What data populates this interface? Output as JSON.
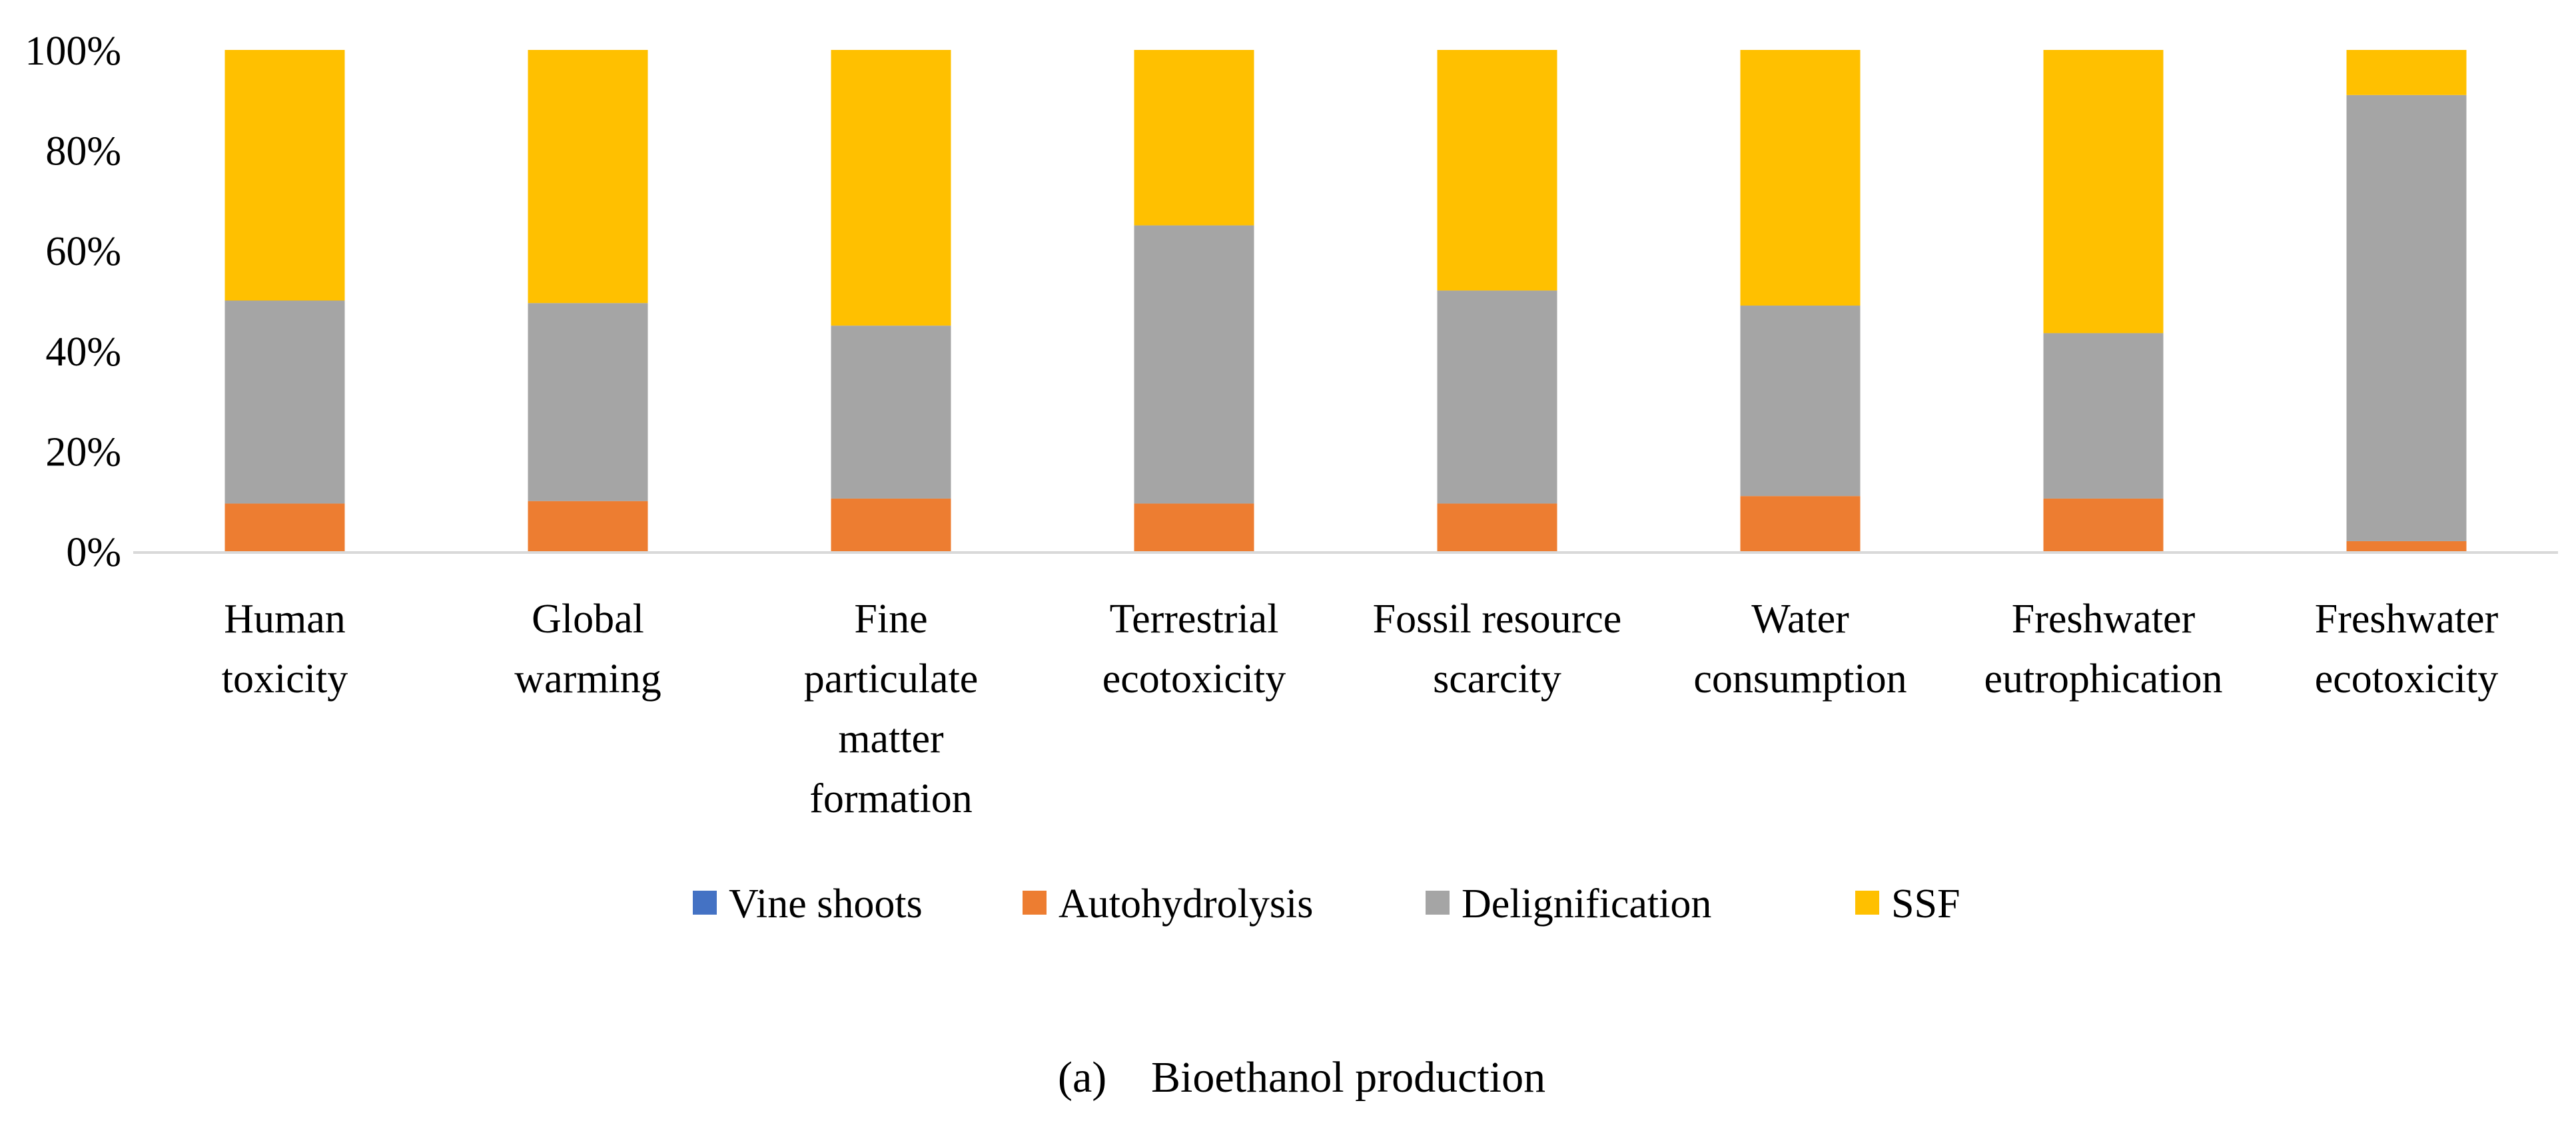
{
  "chart_data": {
    "type": "bar",
    "stacked": true,
    "percent_stacked": true,
    "caption_label": "(a)",
    "caption_title": "Bioethanol production",
    "categories": [
      [
        "Human",
        "toxicity"
      ],
      [
        "Global",
        "warming"
      ],
      [
        "Fine",
        "particulate",
        "matter",
        "formation"
      ],
      [
        "Terrestrial",
        "ecotoxicity"
      ],
      [
        "Fossil resource",
        "scarcity"
      ],
      [
        "Water",
        "consumption"
      ],
      [
        "Freshwater",
        "eutrophication"
      ],
      [
        "Freshwater",
        "ecotoxicity"
      ]
    ],
    "series": [
      {
        "name": "Vine shoots",
        "color": "#4472C4",
        "values": [
          0,
          0,
          0,
          0,
          0,
          0,
          0,
          0
        ]
      },
      {
        "name": "Autohydrolysis",
        "color": "#ED7D31",
        "values": [
          9.5,
          10,
          10.5,
          9.5,
          9.5,
          11,
          10.5,
          2
        ]
      },
      {
        "name": "Delignification",
        "color": "#A5A5A5",
        "values": [
          40.5,
          39.5,
          34.5,
          55.5,
          42.5,
          38,
          33,
          89
        ]
      },
      {
        "name": "SSF",
        "color": "#FFC000",
        "values": [
          50,
          50.5,
          55,
          35,
          48,
          51,
          56.5,
          9
        ]
      }
    ],
    "ylim": [
      0,
      100
    ],
    "yticks": [
      "0%",
      "20%",
      "40%",
      "60%",
      "80%",
      "100%"
    ],
    "ytick_values": [
      0,
      20,
      40,
      60,
      80,
      100
    ],
    "grid": false,
    "legend_position": "bottom",
    "xlabel": "",
    "ylabel": ""
  }
}
